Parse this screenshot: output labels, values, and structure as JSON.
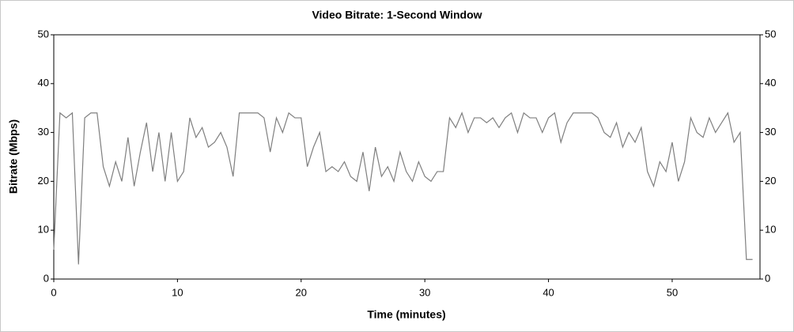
{
  "chart_data": {
    "type": "line",
    "title": "Video Bitrate: 1-Second Window",
    "x_label": "Time (minutes)",
    "y_label": "Bitrate (Mbps)",
    "xlim": [
      0,
      57.1
    ],
    "xticks": [
      0,
      10,
      20,
      30,
      40,
      50
    ],
    "ylim": [
      0,
      50
    ],
    "yticks": [
      0,
      10,
      20,
      30,
      40,
      50
    ],
    "y2lim": [
      0,
      50
    ],
    "y2ticks": [
      0,
      10,
      20,
      30,
      40,
      50
    ],
    "grid": false,
    "series": [
      {
        "color": "#7f7f7f",
        "x": [
          0,
          0.5,
          1,
          1.5,
          2,
          2.5,
          3,
          3.5,
          4,
          4.5,
          5,
          5.5,
          6,
          6.5,
          7,
          7.5,
          8,
          8.5,
          9,
          9.5,
          10,
          10.5,
          11,
          11.5,
          12,
          12.5,
          13,
          13.5,
          14,
          14.5,
          15,
          15.5,
          16,
          16.5,
          17,
          17.5,
          18,
          18.5,
          19,
          19.5,
          20,
          20.5,
          21,
          21.5,
          22,
          22.5,
          23,
          23.5,
          24,
          24.5,
          25,
          25.5,
          26,
          26.5,
          27,
          27.5,
          28,
          28.5,
          29,
          29.5,
          30,
          30.5,
          31,
          31.5,
          32,
          32.5,
          33,
          33.5,
          34,
          34.5,
          35,
          35.5,
          36,
          36.5,
          37,
          37.5,
          38,
          38.5,
          39,
          39.5,
          40,
          40.5,
          41,
          41.5,
          42,
          42.5,
          43,
          43.5,
          44,
          44.5,
          45,
          45.5,
          46,
          46.5,
          47,
          47.5,
          48,
          48.5,
          49,
          49.5,
          50,
          50.5,
          51,
          51.5,
          52,
          52.5,
          53,
          53.5,
          54,
          54.5,
          55,
          55.5,
          56,
          56.5
        ],
        "values": [
          6,
          34,
          33,
          34,
          3,
          33,
          34,
          34,
          23,
          19,
          24,
          20,
          29,
          19,
          26,
          32,
          22,
          30,
          20,
          30,
          20,
          22,
          33,
          29,
          31,
          27,
          28,
          30,
          27,
          21,
          34,
          34,
          34,
          34,
          33,
          26,
          33,
          30,
          34,
          33,
          33,
          23,
          27,
          30,
          22,
          23,
          22,
          24,
          21,
          20,
          26,
          18,
          27,
          21,
          23,
          20,
          26,
          22,
          20,
          24,
          21,
          20,
          22,
          22,
          33,
          31,
          34,
          30,
          33,
          33,
          32,
          33,
          31,
          33,
          34,
          30,
          34,
          33,
          33,
          30,
          33,
          34,
          28,
          32,
          34,
          34,
          34,
          34,
          33,
          30,
          29,
          32,
          27,
          30,
          28,
          31,
          22,
          19,
          24,
          22,
          28,
          20,
          24,
          33,
          30,
          29,
          33,
          30,
          32,
          34,
          28,
          30,
          4,
          4
        ]
      }
    ]
  }
}
